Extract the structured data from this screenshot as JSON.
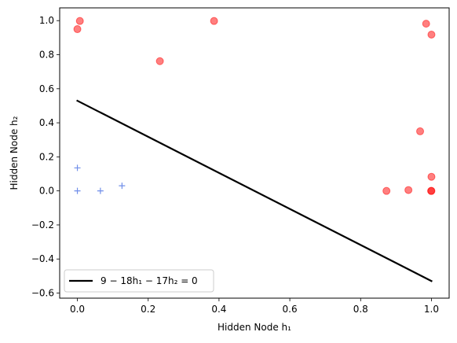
{
  "chart_data": {
    "type": "scatter",
    "xlabel": "Hidden Node h₁",
    "ylabel": "Hidden Node h₂",
    "xlim": [
      -0.05,
      1.05
    ],
    "ylim": [
      -0.63,
      1.075
    ],
    "xticks": [
      0.0,
      0.2,
      0.4,
      0.6,
      0.8,
      1.0
    ],
    "xtick_labels": [
      "0.0",
      "0.2",
      "0.4",
      "0.6",
      "0.8",
      "1.0"
    ],
    "yticks": [
      -0.6,
      -0.4,
      -0.2,
      0.0,
      0.2,
      0.4,
      0.6,
      0.8,
      1.0
    ],
    "ytick_labels": [
      "−0.6",
      "−0.4",
      "−0.2",
      "0.0",
      "0.2",
      "0.4",
      "0.6",
      "0.8",
      "1.0"
    ],
    "grid": false,
    "legend_position": "lower-left",
    "series": [
      {
        "marker": "circle",
        "color": "#ff0000",
        "points": [
          {
            "x": 0.0,
            "y": 0.95
          },
          {
            "x": 0.007,
            "y": 0.998
          },
          {
            "x": 0.233,
            "y": 0.762
          },
          {
            "x": 0.386,
            "y": 0.998
          },
          {
            "x": 0.985,
            "y": 0.982
          },
          {
            "x": 1.0,
            "y": 0.918
          },
          {
            "x": 0.968,
            "y": 0.35
          },
          {
            "x": 1.0,
            "y": 0.083
          },
          {
            "x": 0.873,
            "y": 0.0
          },
          {
            "x": 0.935,
            "y": 0.005
          },
          {
            "x": 0.999,
            "y": 0.0
          },
          {
            "x": 1.0,
            "y": 0.0
          }
        ]
      },
      {
        "marker": "plus",
        "color": "#4169e1",
        "points": [
          {
            "x": 0.0,
            "y": 0.135
          },
          {
            "x": 0.0,
            "y": 0.0
          },
          {
            "x": 0.065,
            "y": 0.0
          },
          {
            "x": 0.126,
            "y": 0.03
          }
        ]
      },
      {
        "name": "9 − 18h₁ − 17h₂ = 0",
        "type": "line",
        "color": "#000000",
        "points": [
          {
            "x": 0.0,
            "y": 0.5294
          },
          {
            "x": 1.0,
            "y": -0.5294
          }
        ]
      }
    ]
  }
}
